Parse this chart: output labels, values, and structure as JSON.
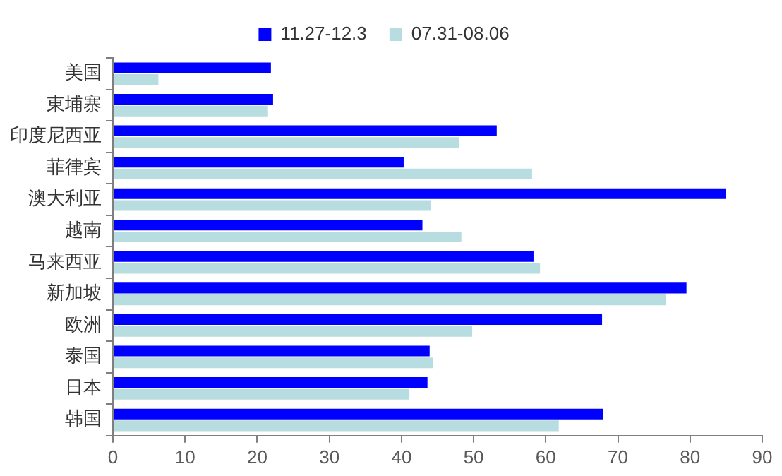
{
  "chart_data": {
    "type": "bar",
    "orientation": "horizontal",
    "categories": [
      "美国",
      "東埔寨",
      "印度尼西亚",
      "菲律宾",
      "澳大利亚",
      "越南",
      "马来西亚",
      "新加坡",
      "欧洲",
      "泰国",
      "日本",
      "韩国"
    ],
    "series": [
      {
        "name": "11.27-12.3",
        "color": "#0000ff",
        "values": [
          21.9,
          22.2,
          53.2,
          40.3,
          85.0,
          42.9,
          58.3,
          79.5,
          67.8,
          43.9,
          43.6,
          67.9
        ]
      },
      {
        "name": "07.31-08.06",
        "color": "#b7dde0",
        "values": [
          6.3,
          21.5,
          48.0,
          58.1,
          44.1,
          48.3,
          59.2,
          76.6,
          49.8,
          44.4,
          41.1,
          61.8
        ]
      }
    ],
    "xlim": [
      0,
      90
    ],
    "xticks": [
      0,
      10,
      20,
      30,
      40,
      50,
      60,
      70,
      80,
      90
    ],
    "grid": false,
    "legend": "top"
  }
}
